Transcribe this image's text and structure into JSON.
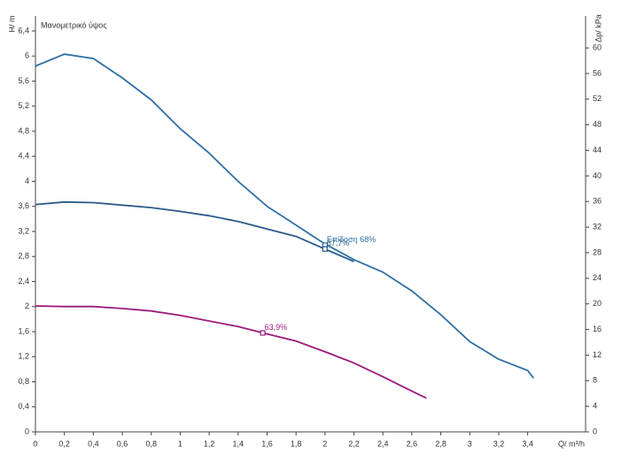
{
  "chart_data": {
    "type": "line",
    "title": "Μανομετρικό ύψος",
    "xlabel": "Q/ m³/h",
    "ylabel": "H/ m",
    "y2label": "Δp/ kPa",
    "xlim": [
      0,
      3.8
    ],
    "ylim": [
      0,
      6.64
    ],
    "y2lim": [
      0,
      65
    ],
    "xticks": [
      0,
      {
        "value": 0.2,
        "label": "0,2"
      },
      {
        "value": 0.4,
        "label": "0,4"
      },
      {
        "value": 0.6,
        "label": "0,6"
      },
      {
        "value": 0.8,
        "label": "0,8"
      },
      1,
      {
        "value": 1.2,
        "label": "1,2"
      },
      {
        "value": 1.4,
        "label": "1,4"
      },
      {
        "value": 1.6,
        "label": "1,6"
      },
      {
        "value": 1.8,
        "label": "1,8"
      },
      2,
      {
        "value": 2.2,
        "label": "2,2"
      },
      {
        "value": 2.4,
        "label": "2,4"
      },
      {
        "value": 2.6,
        "label": "2,6"
      },
      {
        "value": 2.8,
        "label": "2,8"
      },
      3,
      {
        "value": 3.2,
        "label": "3,2"
      },
      {
        "value": 3.4,
        "label": "3,4"
      }
    ],
    "yticks": [
      0,
      {
        "value": 0.4,
        "label": "0,4"
      },
      {
        "value": 0.8,
        "label": "0,8"
      },
      {
        "value": 1.2,
        "label": "1,2"
      },
      {
        "value": 1.6,
        "label": "1,6"
      },
      2,
      {
        "value": 2.4,
        "label": "2,4"
      },
      {
        "value": 2.8,
        "label": "2,8"
      },
      {
        "value": 3.2,
        "label": "3,2"
      },
      {
        "value": 3.6,
        "label": "3,6"
      },
      4,
      {
        "value": 4.4,
        "label": "4,4"
      },
      {
        "value": 4.8,
        "label": "4,8"
      },
      {
        "value": 5.2,
        "label": "5,2"
      },
      {
        "value": 5.6,
        "label": "5,6"
      },
      6,
      {
        "value": 6.4,
        "label": "6,4"
      }
    ],
    "y2ticks": [
      0,
      4,
      8,
      12,
      16,
      20,
      24,
      28,
      32,
      36,
      40,
      44,
      48,
      52,
      56,
      60
    ],
    "grid": false,
    "series": [
      {
        "color": "#2e6fa5",
        "x": [
          0,
          0.2,
          0.4,
          0.6,
          0.8,
          1.0,
          1.2,
          1.4,
          1.6,
          1.8,
          2.0,
          2.2,
          2.4,
          2.6,
          2.8,
          3.0,
          3.2,
          3.4,
          3.44
        ],
        "values": [
          5.84,
          6.03,
          5.96,
          5.65,
          5.3,
          4.84,
          4.45,
          4.0,
          3.6,
          3.3,
          3.0,
          2.75,
          2.55,
          2.25,
          1.87,
          1.44,
          1.16,
          0.98,
          0.86
        ]
      },
      {
        "color": "#2a5a8a",
        "x": [
          0,
          0.2,
          0.4,
          0.6,
          0.8,
          1.0,
          1.2,
          1.4,
          1.6,
          1.8,
          2.0,
          2.2
        ],
        "values": [
          3.63,
          3.67,
          3.66,
          3.62,
          3.58,
          3.52,
          3.45,
          3.36,
          3.24,
          3.12,
          2.92,
          2.72
        ]
      },
      {
        "color": "#9b1b7c",
        "x": [
          0,
          0.2,
          0.4,
          0.6,
          0.8,
          1.0,
          1.2,
          1.4,
          1.57,
          1.8,
          2.0,
          2.2,
          2.4,
          2.6,
          2.7
        ],
        "values": [
          2.01,
          2.0,
          2.0,
          1.97,
          1.93,
          1.86,
          1.77,
          1.68,
          1.58,
          1.45,
          1.28,
          1.1,
          0.88,
          0.65,
          0.54
        ]
      }
    ],
    "annotations": [
      {
        "text": "Επίδοση 68%",
        "x": 2.0,
        "y": 2.98,
        "color": "#2e6fa5"
      },
      {
        "text": "67,7%",
        "x": 2.0,
        "y": 2.92,
        "color": "#2a5a8a"
      },
      {
        "text": "63,9%",
        "x": 1.57,
        "y": 1.58,
        "color": "#9b1b7c"
      }
    ]
  }
}
